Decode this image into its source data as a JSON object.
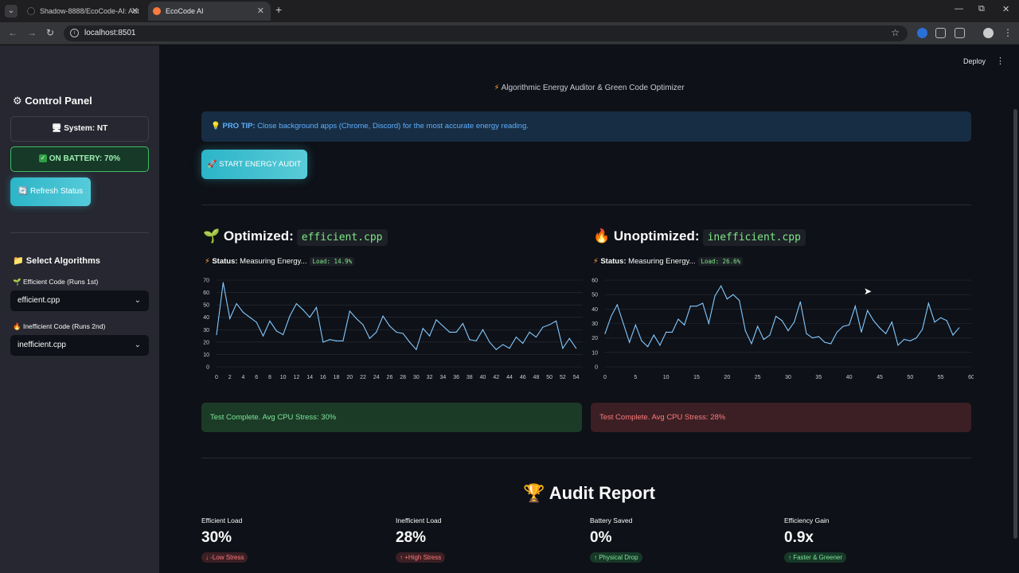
{
  "browser": {
    "tabs": [
      {
        "title": "Shadow-8888/EcoCode-AI: Aut"
      },
      {
        "title": "EcoCode AI"
      }
    ],
    "url": "localhost:8501"
  },
  "header": {
    "deploy_label": "Deploy",
    "subtitle": "Algorithmic Energy Auditor & Green Code Optimizer"
  },
  "sidebar": {
    "title": "Control Panel",
    "system": "System: NT",
    "battery": "ON BATTERY: 70%",
    "refresh_label": "Refresh Status",
    "select_title": "Select Algorithms",
    "efficient_label": "Efficient Code (Runs 1st)",
    "efficient_value": "efficient.cpp",
    "inefficient_label": "Inefficient Code (Runs 2nd)",
    "inefficient_value": "inefficient.cpp"
  },
  "main": {
    "protip_bold": "PRO TIP:",
    "protip_text": "Close background apps (Chrome, Discord) for the most accurate energy reading.",
    "start_button": "START ENERGY AUDIT",
    "optimized": {
      "heading": "Optimized:",
      "file": "efficient.cpp",
      "status_bold": "Status:",
      "status_text": "Measuring Energy...",
      "load": "Load: 14.9%",
      "result": "Test Complete. Avg CPU Stress: 30%"
    },
    "unoptimized": {
      "heading": "Unoptimized:",
      "file": "inefficient.cpp",
      "status_bold": "Status:",
      "status_text": "Measuring Energy...",
      "load": "Load: 26.6%",
      "result": "Test Complete. Avg CPU Stress: 28%"
    },
    "report_title": "Audit Report",
    "metrics": [
      {
        "label": "Efficient Load",
        "value": "30%",
        "delta": "↓ -Low Stress",
        "tone": "red"
      },
      {
        "label": "Inefficient Load",
        "value": "28%",
        "delta": "↑ +High Stress",
        "tone": "red"
      },
      {
        "label": "Battery Saved",
        "value": "0%",
        "delta": "↑ Physical Drop",
        "tone": "green"
      },
      {
        "label": "Efficiency Gain",
        "value": "0.9x",
        "delta": "↑ Faster & Greener",
        "tone": "green"
      }
    ]
  },
  "colors": {
    "line": "#83c9ff",
    "accent": "#2bb5c8"
  },
  "chart_data": [
    {
      "type": "line",
      "xlim": [
        0,
        55
      ],
      "ylim": [
        0,
        70
      ],
      "xticks": [
        0,
        2,
        4,
        6,
        8,
        10,
        12,
        14,
        16,
        18,
        20,
        22,
        24,
        26,
        28,
        30,
        32,
        34,
        36,
        38,
        40,
        42,
        44,
        46,
        48,
        50,
        52,
        54
      ],
      "yticks": [
        0,
        10,
        20,
        30,
        40,
        50,
        60,
        70
      ],
      "values": [
        26,
        68,
        39,
        51,
        44,
        40,
        36,
        25,
        37,
        29,
        26,
        41,
        51,
        46,
        40,
        48,
        20,
        22,
        21,
        21,
        45,
        39,
        34,
        23,
        28,
        41,
        33,
        28,
        27,
        20,
        14,
        31,
        25,
        38,
        33,
        28,
        28,
        35,
        22,
        21,
        30,
        20,
        14,
        18,
        15,
        24,
        19,
        28,
        24,
        32,
        34,
        37,
        15,
        23,
        15
      ]
    },
    {
      "type": "line",
      "xlim": [
        0,
        60
      ],
      "ylim": [
        0,
        60
      ],
      "xticks": [
        0,
        5,
        10,
        15,
        20,
        25,
        30,
        35,
        40,
        45,
        50,
        55,
        60
      ],
      "yticks": [
        0,
        10,
        20,
        30,
        40,
        50,
        60
      ],
      "values": [
        23,
        35,
        43,
        30,
        17,
        29,
        18,
        14,
        22,
        15,
        24,
        24,
        33,
        29,
        42,
        42,
        44,
        30,
        49,
        56,
        47,
        50,
        46,
        25,
        16,
        28,
        19,
        22,
        35,
        32,
        25,
        31,
        45,
        23,
        20,
        21,
        17,
        16,
        24,
        28,
        29,
        42,
        24,
        39,
        32,
        27,
        23,
        31,
        15,
        19,
        18,
        20,
        26,
        44,
        31,
        34,
        32,
        22,
        27
      ]
    }
  ]
}
